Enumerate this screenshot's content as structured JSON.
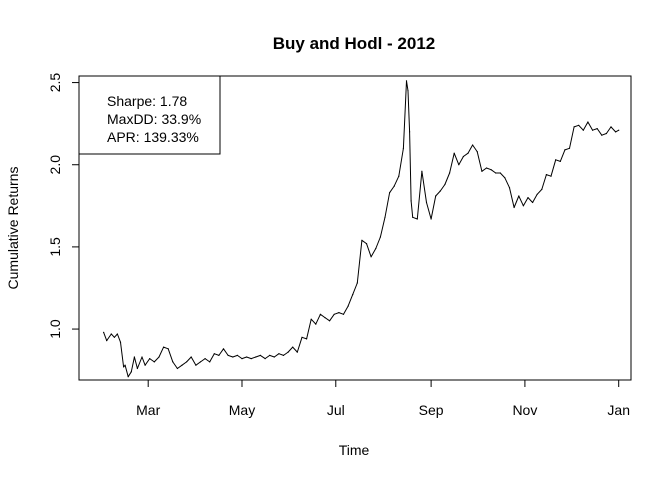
{
  "chart_data": {
    "type": "line",
    "title": "Buy and Hodl -  2012",
    "xlabel": "Time",
    "ylabel": "Cumulative Returns",
    "x_ticks": [
      {
        "label": "Mar",
        "value": "2012-03-01"
      },
      {
        "label": "May",
        "value": "2012-05-01"
      },
      {
        "label": "Jul",
        "value": "2012-07-01"
      },
      {
        "label": "Sep",
        "value": "2012-09-01"
      },
      {
        "label": "Nov",
        "value": "2012-11-01"
      },
      {
        "label": "Jan",
        "value": "2013-01-01"
      }
    ],
    "y_ticks": [
      "1.0",
      "1.5",
      "2.0",
      "2.5"
    ],
    "xlim": [
      "2012-01-16",
      "2013-01-09"
    ],
    "ylim": [
      0.69,
      2.54
    ],
    "grid": false,
    "legend_position": "top-left",
    "legend": [
      "Sharpe: 1.78",
      "MaxDD: 33.9%",
      "APR: 139.33%"
    ],
    "series": [
      {
        "color": "#000000",
        "x": [
          "2012-02-01",
          "2012-02-03",
          "2012-02-06",
          "2012-02-08",
          "2012-02-10",
          "2012-02-12",
          "2012-02-14",
          "2012-02-15",
          "2012-02-17",
          "2012-02-19",
          "2012-02-21",
          "2012-02-23",
          "2012-02-26",
          "2012-02-28",
          "2012-03-02",
          "2012-03-05",
          "2012-03-08",
          "2012-03-11",
          "2012-03-14",
          "2012-03-17",
          "2012-03-20",
          "2012-03-23",
          "2012-03-26",
          "2012-03-29",
          "2012-04-01",
          "2012-04-04",
          "2012-04-07",
          "2012-04-10",
          "2012-04-13",
          "2012-04-16",
          "2012-04-19",
          "2012-04-22",
          "2012-04-25",
          "2012-04-28",
          "2012-05-01",
          "2012-05-04",
          "2012-05-07",
          "2012-05-10",
          "2012-05-13",
          "2012-05-16",
          "2012-05-19",
          "2012-05-22",
          "2012-05-25",
          "2012-05-28",
          "2012-05-31",
          "2012-06-03",
          "2012-06-06",
          "2012-06-09",
          "2012-06-12",
          "2012-06-15",
          "2012-06-18",
          "2012-06-21",
          "2012-06-24",
          "2012-06-27",
          "2012-06-30",
          "2012-07-03",
          "2012-07-06",
          "2012-07-09",
          "2012-07-12",
          "2012-07-15",
          "2012-07-18",
          "2012-07-21",
          "2012-07-24",
          "2012-07-27",
          "2012-07-30",
          "2012-08-02",
          "2012-08-05",
          "2012-08-08",
          "2012-08-11",
          "2012-08-14",
          "2012-08-16",
          "2012-08-17",
          "2012-08-18",
          "2012-08-19",
          "2012-08-20",
          "2012-08-23",
          "2012-08-26",
          "2012-08-29",
          "2012-09-01",
          "2012-09-04",
          "2012-09-07",
          "2012-09-10",
          "2012-09-13",
          "2012-09-16",
          "2012-09-19",
          "2012-09-22",
          "2012-09-25",
          "2012-09-28",
          "2012-10-01",
          "2012-10-04",
          "2012-10-07",
          "2012-10-10",
          "2012-10-13",
          "2012-10-16",
          "2012-10-19",
          "2012-10-22",
          "2012-10-25",
          "2012-10-28",
          "2012-10-31",
          "2012-11-03",
          "2012-11-06",
          "2012-11-09",
          "2012-11-12",
          "2012-11-15",
          "2012-11-18",
          "2012-11-21",
          "2012-11-24",
          "2012-11-27",
          "2012-11-30",
          "2012-12-03",
          "2012-12-06",
          "2012-12-09",
          "2012-12-12",
          "2012-12-15",
          "2012-12-18",
          "2012-12-21",
          "2012-12-24",
          "2012-12-27",
          "2012-12-30",
          "2013-01-01"
        ],
        "y": [
          0.98,
          0.93,
          0.97,
          0.95,
          0.97,
          0.92,
          0.77,
          0.78,
          0.71,
          0.74,
          0.83,
          0.76,
          0.83,
          0.78,
          0.82,
          0.8,
          0.83,
          0.89,
          0.88,
          0.8,
          0.76,
          0.78,
          0.8,
          0.83,
          0.78,
          0.8,
          0.82,
          0.8,
          0.85,
          0.84,
          0.88,
          0.84,
          0.83,
          0.84,
          0.82,
          0.83,
          0.82,
          0.83,
          0.84,
          0.82,
          0.84,
          0.83,
          0.85,
          0.84,
          0.86,
          0.89,
          0.86,
          0.95,
          0.94,
          1.06,
          1.03,
          1.09,
          1.07,
          1.05,
          1.09,
          1.1,
          1.09,
          1.14,
          1.21,
          1.28,
          1.54,
          1.52,
          1.44,
          1.49,
          1.56,
          1.68,
          1.83,
          1.87,
          1.93,
          2.1,
          2.51,
          2.45,
          2.2,
          1.78,
          1.68,
          1.67,
          1.96,
          1.77,
          1.67,
          1.81,
          1.84,
          1.88,
          1.95,
          2.07,
          2.0,
          2.05,
          2.07,
          2.12,
          2.08,
          1.96,
          1.98,
          1.97,
          1.95,
          1.95,
          1.92,
          1.86,
          1.74,
          1.81,
          1.75,
          1.8,
          1.77,
          1.82,
          1.85,
          1.94,
          1.93,
          2.03,
          2.02,
          2.09,
          2.1,
          2.23,
          2.24,
          2.21,
          2.26,
          2.21,
          2.22,
          2.18,
          2.19,
          2.23,
          2.2,
          2.21
        ]
      }
    ]
  }
}
